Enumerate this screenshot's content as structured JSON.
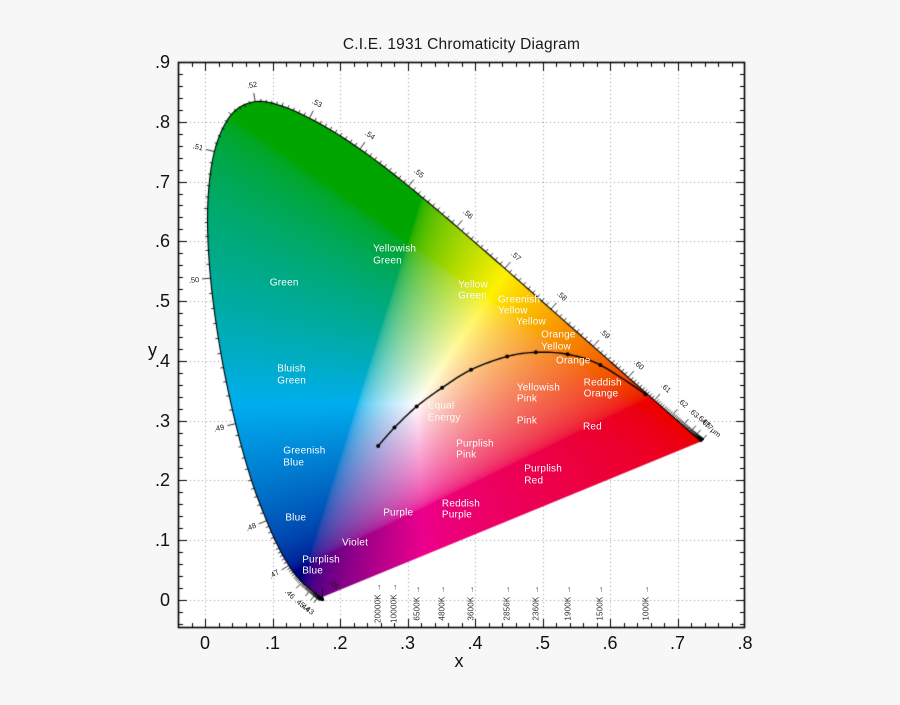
{
  "title": "C.I.E. 1931 Chromaticity Diagram",
  "axes": {
    "xlabel": "x",
    "ylabel": "y",
    "x_ticks": [
      {
        "label": "0",
        "value": 0.0
      },
      {
        "label": ".1",
        "value": 0.1
      },
      {
        "label": ".2",
        "value": 0.2
      },
      {
        "label": ".3",
        "value": 0.3
      },
      {
        "label": ".4",
        "value": 0.4
      },
      {
        "label": ".5",
        "value": 0.5
      },
      {
        "label": ".6",
        "value": 0.6
      },
      {
        "label": ".7",
        "value": 0.7
      },
      {
        "label": ".8",
        "value": 0.8
      }
    ],
    "y_ticks": [
      {
        "label": ".9",
        "value": 0.9
      },
      {
        "label": ".8",
        "value": 0.8
      },
      {
        "label": ".7",
        "value": 0.7
      },
      {
        "label": ".6",
        "value": 0.6
      },
      {
        "label": ".5",
        "value": 0.5
      },
      {
        "label": ".4",
        "value": 0.4
      },
      {
        "label": ".3",
        "value": 0.3
      },
      {
        "label": ".2",
        "value": 0.2
      },
      {
        "label": ".1",
        "value": 0.1
      },
      {
        "label": "0",
        "value": 0.0
      }
    ]
  },
  "chart_data": {
    "type": "area",
    "title": "C.I.E. 1931 Chromaticity Diagram",
    "xlabel": "x",
    "ylabel": "y",
    "xlim": [
      -0.04,
      0.8
    ],
    "ylim": [
      -0.047,
      0.9
    ],
    "grid": "dotted, every 0.1 in x and y",
    "spectral_locus": {
      "wavelength_nm": [
        380,
        385,
        390,
        395,
        400,
        405,
        410,
        415,
        420,
        425,
        430,
        435,
        440,
        445,
        450,
        455,
        460,
        465,
        470,
        475,
        480,
        485,
        490,
        495,
        500,
        505,
        510,
        515,
        520,
        525,
        530,
        535,
        540,
        545,
        550,
        555,
        560,
        565,
        570,
        575,
        580,
        585,
        590,
        595,
        600,
        605,
        610,
        615,
        620,
        625,
        630,
        635,
        640,
        645,
        650,
        655,
        660,
        665,
        670,
        675,
        680,
        685,
        690,
        695,
        700,
        770
      ],
      "x": [
        0.1741,
        0.174,
        0.1738,
        0.1736,
        0.1733,
        0.173,
        0.1726,
        0.1721,
        0.1714,
        0.1703,
        0.1689,
        0.1669,
        0.1644,
        0.1611,
        0.1566,
        0.151,
        0.144,
        0.1355,
        0.1241,
        0.1096,
        0.0913,
        0.0687,
        0.0454,
        0.0235,
        0.0082,
        0.0039,
        0.0139,
        0.0389,
        0.0743,
        0.1142,
        0.1547,
        0.1929,
        0.2296,
        0.2658,
        0.3016,
        0.3373,
        0.3731,
        0.4087,
        0.4441,
        0.4788,
        0.5125,
        0.5448,
        0.5752,
        0.6029,
        0.627,
        0.6482,
        0.6658,
        0.6801,
        0.6915,
        0.7006,
        0.7079,
        0.714,
        0.719,
        0.723,
        0.726,
        0.7283,
        0.73,
        0.7311,
        0.732,
        0.7327,
        0.7334,
        0.734,
        0.7344,
        0.7346,
        0.7347,
        0.7347
      ],
      "y": [
        0.005,
        0.005,
        0.0049,
        0.0049,
        0.0048,
        0.0048,
        0.0048,
        0.0048,
        0.0051,
        0.0058,
        0.0069,
        0.0086,
        0.0109,
        0.0138,
        0.0177,
        0.0227,
        0.0297,
        0.0399,
        0.0578,
        0.0868,
        0.1327,
        0.2007,
        0.295,
        0.4127,
        0.5384,
        0.6548,
        0.7502,
        0.812,
        0.8338,
        0.8262,
        0.8059,
        0.7816,
        0.7543,
        0.7243,
        0.6923,
        0.6589,
        0.6245,
        0.5896,
        0.5547,
        0.5202,
        0.4866,
        0.4544,
        0.4242,
        0.3965,
        0.3725,
        0.3514,
        0.334,
        0.3197,
        0.3083,
        0.2993,
        0.292,
        0.2859,
        0.2809,
        0.277,
        0.274,
        0.2717,
        0.27,
        0.2689,
        0.268,
        0.2673,
        0.2666,
        0.266,
        0.2656,
        0.2654,
        0.2653,
        0.2653
      ]
    },
    "locus_wavelength_labels": [
      {
        "nm": 380,
        "label": ".38"
      },
      {
        "nm": 430,
        "label": ".43"
      },
      {
        "nm": 440,
        "label": ".44"
      },
      {
        "nm": 450,
        "label": ".45"
      },
      {
        "nm": 460,
        "label": ".46"
      },
      {
        "nm": 470,
        "label": ".47"
      },
      {
        "nm": 480,
        "label": ".48"
      },
      {
        "nm": 490,
        "label": ".49"
      },
      {
        "nm": 500,
        "label": ".50"
      },
      {
        "nm": 510,
        "label": ".51"
      },
      {
        "nm": 520,
        "label": ".52"
      },
      {
        "nm": 530,
        "label": ".53"
      },
      {
        "nm": 540,
        "label": ".54"
      },
      {
        "nm": 550,
        "label": ".55"
      },
      {
        "nm": 560,
        "label": ".56"
      },
      {
        "nm": 570,
        "label": ".57"
      },
      {
        "nm": 580,
        "label": ".58"
      },
      {
        "nm": 590,
        "label": ".59"
      },
      {
        "nm": 600,
        "label": ".60"
      },
      {
        "nm": 610,
        "label": ".61"
      },
      {
        "nm": 620,
        "label": ".62"
      },
      {
        "nm": 630,
        "label": ".63"
      },
      {
        "nm": 640,
        "label": ".64"
      },
      {
        "nm": 650,
        "label": ".65"
      },
      {
        "nm": 770,
        "label": ".77μm"
      }
    ],
    "planckian_locus": {
      "labels": [
        "20000K",
        "10000K",
        "6500K",
        "4800K",
        "3600K",
        "2856K",
        "2360K",
        "1900K",
        "1500K",
        "1000K"
      ],
      "arrow": "→",
      "x": [
        0.2565,
        0.2807,
        0.3135,
        0.3513,
        0.3941,
        0.4476,
        0.4902,
        0.5373,
        0.5857,
        0.6528
      ],
      "y": [
        0.2577,
        0.2884,
        0.3237,
        0.355,
        0.3851,
        0.4074,
        0.4143,
        0.411,
        0.3931,
        0.3444
      ]
    },
    "region_labels": [
      {
        "lines": [
          "Yellowish",
          "Green"
        ],
        "x": 0.249,
        "y": 0.577
      },
      {
        "lines": [
          "Green"
        ],
        "x": 0.096,
        "y": 0.53
      },
      {
        "lines": [
          "Yellow",
          "Green"
        ],
        "x": 0.375,
        "y": 0.517
      },
      {
        "lines": [
          "Greenish",
          "Yellow"
        ],
        "x": 0.434,
        "y": 0.492
      },
      {
        "lines": [
          "Yellow"
        ],
        "x": 0.461,
        "y": 0.465
      },
      {
        "lines": [
          "Orange",
          "Yellow"
        ],
        "x": 0.498,
        "y": 0.433
      },
      {
        "lines": [
          "Orange"
        ],
        "x": 0.52,
        "y": 0.4
      },
      {
        "lines": [
          "Reddish",
          "Orange"
        ],
        "x": 0.561,
        "y": 0.353
      },
      {
        "lines": [
          "Yellowish",
          "Pink"
        ],
        "x": 0.462,
        "y": 0.345
      },
      {
        "lines": [
          "Pink"
        ],
        "x": 0.462,
        "y": 0.299
      },
      {
        "lines": [
          "Red"
        ],
        "x": 0.56,
        "y": 0.289
      },
      {
        "lines": [
          "Equal",
          "Energy"
        ],
        "x": 0.33,
        "y": 0.314
      },
      {
        "lines": [
          "Purplish",
          "Pink"
        ],
        "x": 0.372,
        "y": 0.251
      },
      {
        "lines": [
          "Purplish",
          "Red"
        ],
        "x": 0.473,
        "y": 0.209
      },
      {
        "lines": [
          "Reddish",
          "Purple"
        ],
        "x": 0.351,
        "y": 0.151
      },
      {
        "lines": [
          "Purple"
        ],
        "x": 0.264,
        "y": 0.146
      },
      {
        "lines": [
          "Violet"
        ],
        "x": 0.203,
        "y": 0.095
      },
      {
        "lines": [
          "Purplish",
          "Blue"
        ],
        "x": 0.144,
        "y": 0.057
      },
      {
        "lines": [
          "Blue"
        ],
        "x": 0.119,
        "y": 0.137
      },
      {
        "lines": [
          "Greenish",
          "Blue"
        ],
        "x": 0.116,
        "y": 0.239
      },
      {
        "lines": [
          "Bluish",
          "Green"
        ],
        "x": 0.107,
        "y": 0.376
      }
    ],
    "colors": {
      "cyan_ink": "#00AEEF",
      "magenta_ink": "#EC008C",
      "yellow_ink": "#FFF200",
      "locus_stroke": "#000000",
      "grid": "#9a9a9a",
      "frame": "#000000",
      "background": "#f7f7f7",
      "plot_background": "#ffffff",
      "region_label_text": "#ffffff"
    }
  }
}
